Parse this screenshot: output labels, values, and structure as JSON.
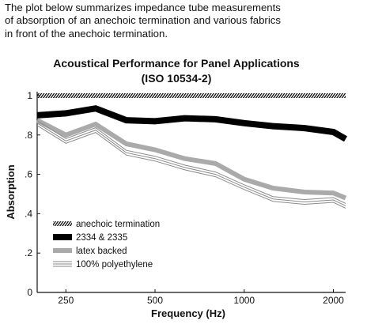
{
  "intro": {
    "lines": [
      "The plot below summarizes impedance tube measurements",
      "of absorption of an anechoic termination and various fabrics",
      "in front of the anechoic termination."
    ]
  },
  "chart_data": {
    "type": "line",
    "title": "Acoustical Performance for Panel Applications",
    "subtitle": "(ISO 10534-2)",
    "xlabel": "Frequency (Hz)",
    "ylabel": "Absorption",
    "xlim": [
      200,
      2200
    ],
    "ylim": [
      0,
      1.02
    ],
    "x_ticks": [
      250,
      500,
      1000,
      2000
    ],
    "x_tick_labels": [
      "250",
      "500",
      "1000",
      "2000"
    ],
    "y_ticks": [
      0,
      0.2,
      0.4,
      0.6,
      0.8,
      1
    ],
    "y_tick_labels": [
      "0",
      ".2",
      ".4",
      ".6",
      ".8",
      "1"
    ],
    "x": [
      200,
      250,
      315,
      400,
      500,
      630,
      800,
      1000,
      1250,
      1600,
      2000,
      2200
    ],
    "series": [
      {
        "name": "anechoic termination",
        "style": "hatched",
        "values": [
          1,
          1,
          1,
          1,
          1,
          1,
          1,
          1,
          1,
          1,
          1,
          1
        ]
      },
      {
        "name": "2334 & 2335",
        "style": "thick-black",
        "values": [
          0.9,
          0.91,
          0.935,
          0.875,
          0.87,
          0.885,
          0.88,
          0.86,
          0.845,
          0.835,
          0.815,
          0.78
        ]
      },
      {
        "name": "latex backed",
        "style": "gray",
        "values": [
          0.875,
          0.8,
          0.855,
          0.755,
          0.725,
          0.68,
          0.655,
          0.575,
          0.53,
          0.51,
          0.505,
          0.48
        ]
      },
      {
        "name": "100% polyethylene",
        "style": "triple-line",
        "values": [
          0.86,
          0.77,
          0.825,
          0.71,
          0.68,
          0.635,
          0.6,
          0.535,
          0.475,
          0.46,
          0.47,
          0.44
        ]
      }
    ],
    "legend_position": "bottom-left",
    "grid": false
  }
}
